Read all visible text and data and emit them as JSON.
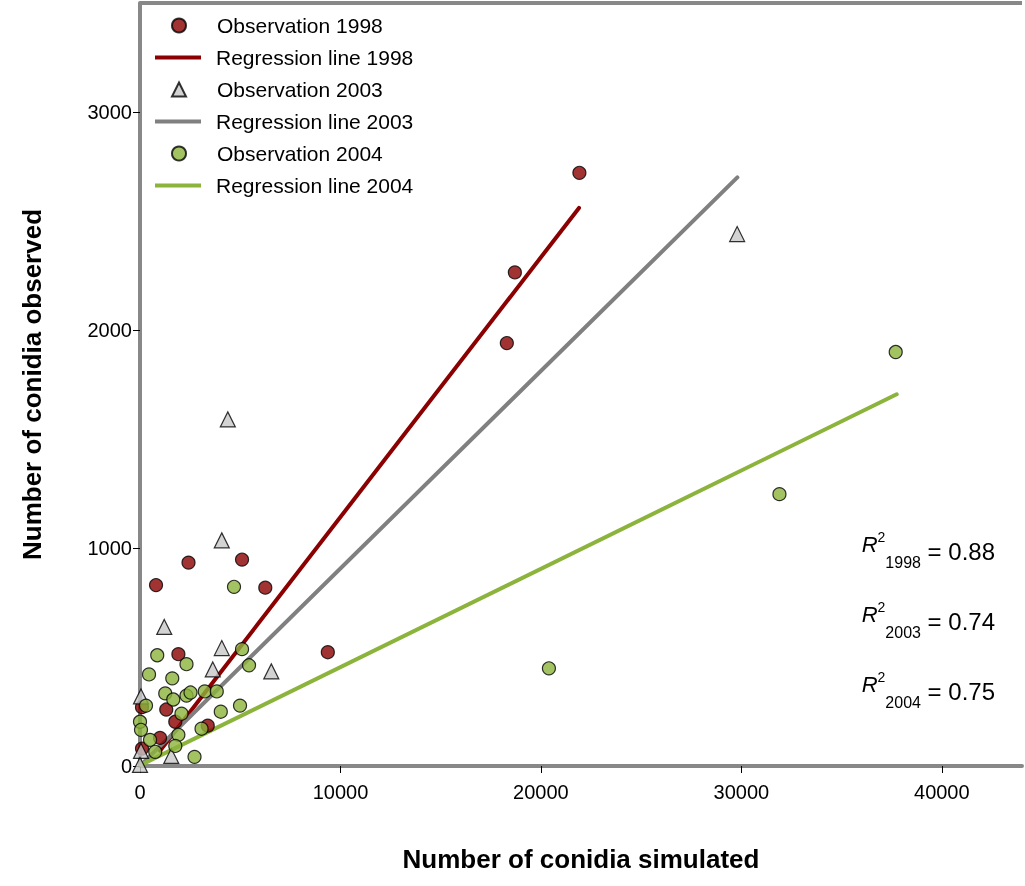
{
  "chart_data": {
    "type": "scatter",
    "xlabel": "Number of conidia simulated",
    "ylabel": "Number of conidia observed",
    "xlim": [
      0,
      44000
    ],
    "ylim": [
      0,
      3500
    ],
    "xticks": [
      0,
      10000,
      20000,
      30000,
      40000
    ],
    "yticks": [
      0,
      1000,
      2000,
      3000
    ],
    "grid": false,
    "legend": "top left",
    "annotations": [
      "R$^{2}$$_{1998}$ = 0.88",
      "R$^{2}$$_{2003}$ = 0.74",
      "R$^{2}$$_{2004}$ = 0.75"
    ],
    "series": [
      {
        "name": "Observation 1998",
        "marker": "circle",
        "color": "#8b0000",
        "x": [
          800,
          2420,
          5090,
          6250,
          1915,
          1310,
          1760,
          3380,
          1000,
          100,
          100,
          9370,
          18300,
          18700,
          21920
        ],
        "values": [
          830,
          933,
          947,
          818,
          513,
          259,
          203,
          185,
          129,
          270,
          80,
          522,
          1940,
          2264,
          2721
        ]
      },
      {
        "name": "Regression line 1998",
        "type": "line",
        "marker": "none",
        "line_style": "solid",
        "color": "#8b0000",
        "x": [
          1000,
          21900
        ],
        "values": [
          70,
          2560
        ]
      },
      {
        "name": "Observation 2003",
        "marker": "triangle",
        "color": "#c8c8c8",
        "x": [
          4380,
          4080,
          1210,
          4080,
          3630,
          6550,
          50,
          50,
          1560,
          0,
          29790
        ],
        "values": [
          1590,
          1035,
          638,
          541,
          443,
          434,
          319,
          69,
          46,
          5,
          2440
        ]
      },
      {
        "name": "Regression line 2003",
        "type": "line",
        "marker": "none",
        "line_style": "solid",
        "color": "#808080",
        "x": [
          150,
          29800
        ],
        "values": [
          14,
          2700
        ]
      },
      {
        "name": "Observation 2004",
        "marker": "circle",
        "color": "#8cb43c",
        "x": [
          4690,
          860,
          5090,
          2320,
          5440,
          450,
          1610,
          1260,
          1660,
          2320,
          2520,
          3230,
          3830,
          300,
          4990,
          4030,
          2070,
          0,
          50,
          3070,
          1915,
          500,
          1760,
          760,
          2720,
          20400,
          31900,
          37700
        ],
        "values": [
          822,
          508,
          536,
          467,
          462,
          420,
          402,
          333,
          305,
          323,
          337,
          342,
          342,
          277,
          277,
          249,
          240,
          203,
          166,
          171,
          143,
          120,
          92,
          65,
          42,
          448,
          1247,
          1899
        ]
      },
      {
        "name": "Regression line 2004",
        "type": "line",
        "marker": "none",
        "line_style": "solid",
        "color": "#8cb43c",
        "x": [
          50,
          37750
        ],
        "values": [
          5,
          1705
        ]
      }
    ]
  }
}
